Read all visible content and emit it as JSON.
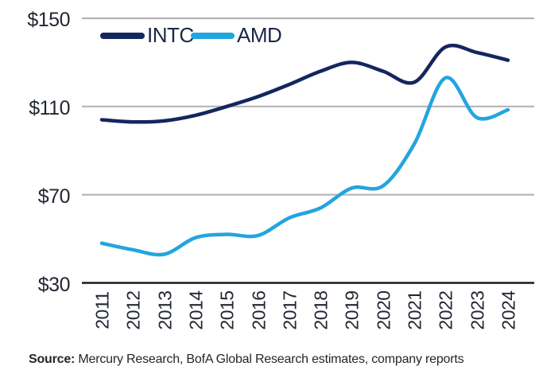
{
  "source": {
    "label": "Source:",
    "text": " Mercury Research, BofA Global Research estimates, company reports"
  },
  "chart_data": {
    "type": "line",
    "title": "",
    "xlabel": "",
    "ylabel": "",
    "categories": [
      "2011",
      "2012",
      "2013",
      "2014",
      "2015",
      "2016",
      "2017",
      "2018",
      "2019",
      "2020",
      "2021",
      "2022",
      "2023",
      "2024"
    ],
    "series": [
      {
        "name": "INTC",
        "color": "#13265f",
        "values": [
          104,
          103,
          103.5,
          106,
          110,
          114.5,
          120,
          126,
          130,
          126,
          121,
          137,
          134.5,
          131
        ]
      },
      {
        "name": "AMD",
        "color": "#23a5df",
        "values": [
          48,
          45,
          43,
          50.5,
          52,
          51.5,
          59.5,
          64,
          73,
          74,
          93,
          123,
          105,
          108.5
        ]
      }
    ],
    "ylim": [
      30,
      150
    ],
    "yticks": [
      {
        "label": "$150",
        "value": 150
      },
      {
        "label": "$110",
        "value": 110
      },
      {
        "label": "$70",
        "value": 70
      },
      {
        "label": "$30",
        "value": 30
      }
    ],
    "grid": "horizontal",
    "grid_color": "#b4b4b4",
    "axis_color": "#1a1a1a",
    "legend_position": "top-left",
    "line_style": "smooth"
  }
}
